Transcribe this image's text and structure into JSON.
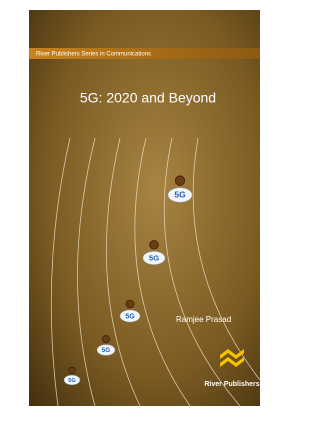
{
  "cover": {
    "series": "River Publishers Series in Communications",
    "title": "5G: 2020 and Beyond",
    "author": "Ramjee Prasad",
    "publisher": "River Publishers",
    "badges": [
      {
        "label": "5G"
      },
      {
        "label": "5G"
      },
      {
        "label": "5G"
      },
      {
        "label": "5G"
      },
      {
        "label": "5G"
      }
    ]
  }
}
